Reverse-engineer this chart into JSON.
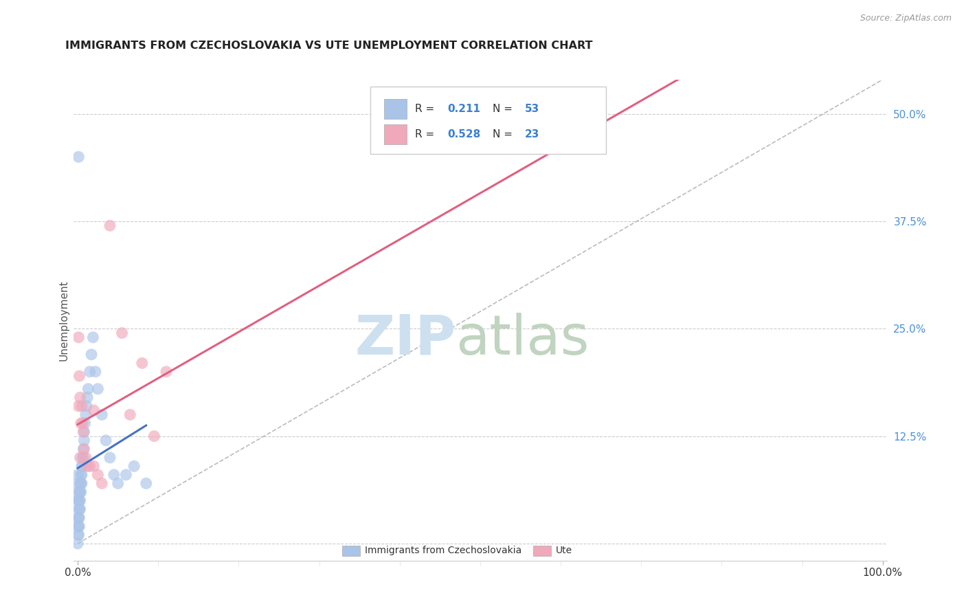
{
  "title": "IMMIGRANTS FROM CZECHOSLOVAKIA VS UTE UNEMPLOYMENT CORRELATION CHART",
  "source": "Source: ZipAtlas.com",
  "ylabel": "Unemployment",
  "y_tick_positions": [
    0.0,
    0.125,
    0.25,
    0.375,
    0.5
  ],
  "y_tick_labels": [
    "",
    "12.5%",
    "25.0%",
    "37.5%",
    "50.0%"
  ],
  "x_tick_positions": [
    0.0,
    1.0
  ],
  "x_tick_labels": [
    "0.0%",
    "100.0%"
  ],
  "legend_blue_r": "0.211",
  "legend_blue_n": "53",
  "legend_pink_r": "0.528",
  "legend_pink_n": "23",
  "blue_color": "#aac4e8",
  "pink_color": "#f0a8bb",
  "blue_line_color": "#4472c4",
  "pink_line_color": "#e06080",
  "ref_line_color": "#bbbbbb",
  "watermark_zip_color": "#d0e4f5",
  "watermark_atlas_color": "#c8dcc8",
  "blue_x": [
    0.001,
    0.001,
    0.001,
    0.001,
    0.001,
    0.002,
    0.002,
    0.002,
    0.002,
    0.002,
    0.003,
    0.003,
    0.003,
    0.003,
    0.004,
    0.004,
    0.004,
    0.005,
    0.005,
    0.005,
    0.006,
    0.006,
    0.007,
    0.007,
    0.008,
    0.008,
    0.009,
    0.01,
    0.011,
    0.012,
    0.013,
    0.015,
    0.017,
    0.019,
    0.022,
    0.025,
    0.03,
    0.035,
    0.04,
    0.045,
    0.05,
    0.06,
    0.07,
    0.085,
    0.0,
    0.0,
    0.0,
    0.0,
    0.001,
    0.001,
    0.0,
    0.0,
    0.0
  ],
  "blue_y": [
    0.05,
    0.04,
    0.03,
    0.02,
    0.01,
    0.06,
    0.05,
    0.04,
    0.03,
    0.02,
    0.07,
    0.06,
    0.05,
    0.04,
    0.08,
    0.07,
    0.06,
    0.09,
    0.08,
    0.07,
    0.1,
    0.09,
    0.11,
    0.1,
    0.13,
    0.12,
    0.14,
    0.15,
    0.16,
    0.17,
    0.18,
    0.2,
    0.22,
    0.24,
    0.2,
    0.18,
    0.15,
    0.12,
    0.1,
    0.08,
    0.07,
    0.08,
    0.09,
    0.07,
    0.06,
    0.05,
    0.03,
    0.02,
    0.45,
    0.01,
    0.07,
    0.08,
    0.0
  ],
  "pink_x": [
    0.001,
    0.001,
    0.002,
    0.003,
    0.003,
    0.004,
    0.005,
    0.006,
    0.007,
    0.008,
    0.01,
    0.012,
    0.015,
    0.02,
    0.025,
    0.03,
    0.04,
    0.055,
    0.065,
    0.08,
    0.095,
    0.11,
    0.02
  ],
  "pink_y": [
    0.24,
    0.16,
    0.195,
    0.17,
    0.1,
    0.14,
    0.16,
    0.14,
    0.13,
    0.11,
    0.1,
    0.09,
    0.09,
    0.09,
    0.08,
    0.07,
    0.37,
    0.245,
    0.15,
    0.21,
    0.125,
    0.2,
    0.155
  ]
}
